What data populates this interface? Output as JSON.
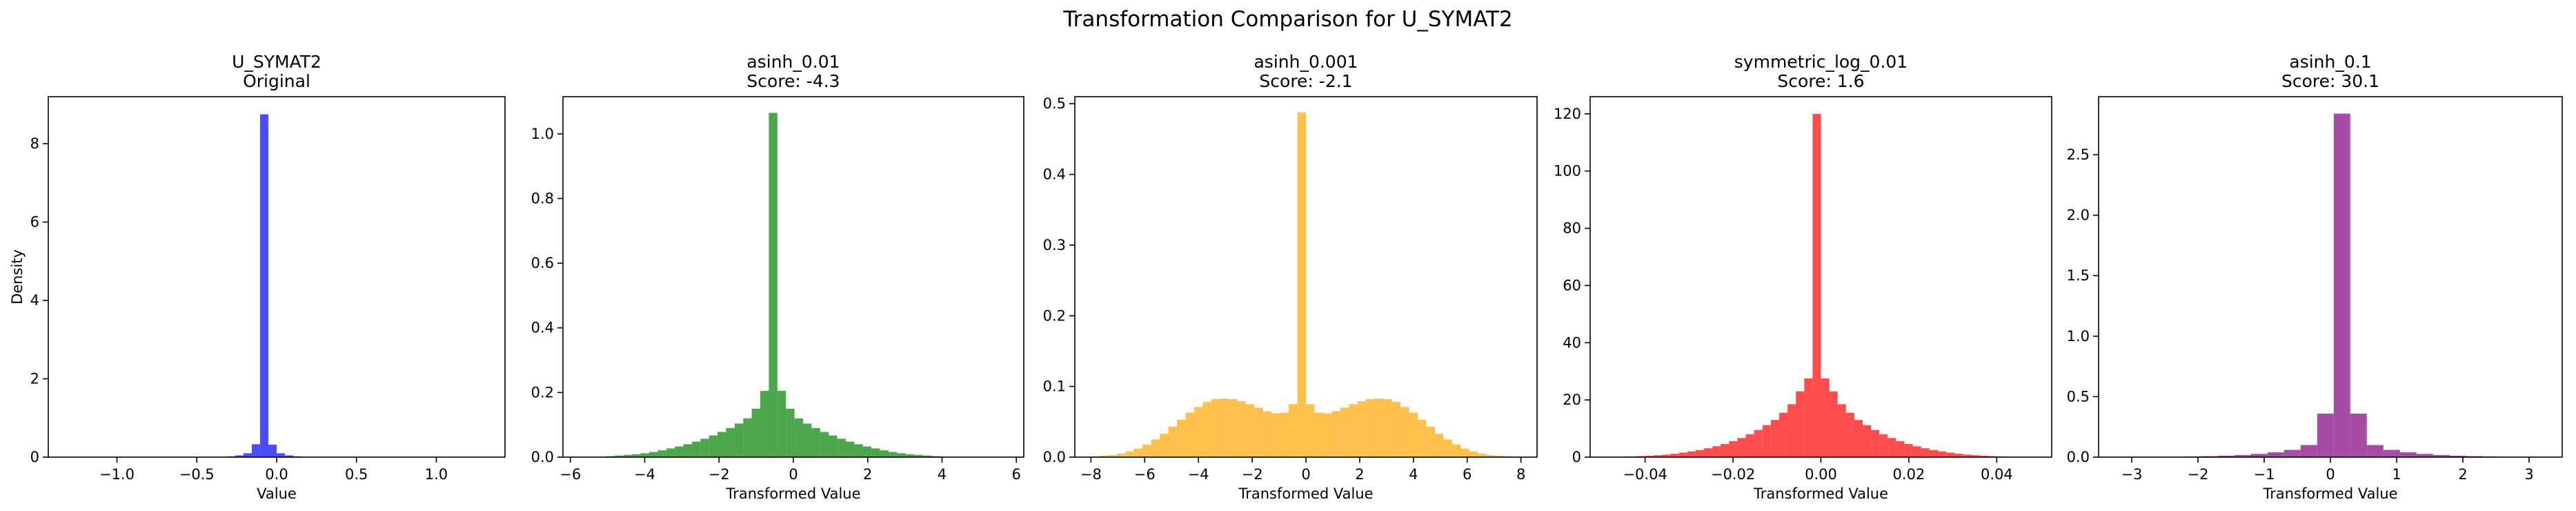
{
  "figure": {
    "suptitle": "Transformation Comparison for U_SYMAT2"
  },
  "chart_data": [
    {
      "type": "bar",
      "title_line1": "U_SYMAT2",
      "title_line2": "Original",
      "xlabel": "Value",
      "ylabel": "Density",
      "xlim": [
        -1.43,
        1.43
      ],
      "ylim": [
        0,
        9.2
      ],
      "xticks": [
        -1.0,
        -0.5,
        0.0,
        0.5,
        1.0
      ],
      "xtick_labels": [
        "−1.0",
        "−0.5",
        "0.0",
        "0.5",
        "1.0"
      ],
      "yticks": [
        0,
        2,
        4,
        6,
        8
      ],
      "ytick_labels": [
        "0",
        "2",
        "4",
        "6",
        "8"
      ],
      "color": "#0000ff",
      "bin_start": -1.3,
      "bin_width": 0.052,
      "values": [
        0,
        0,
        0,
        0,
        0,
        0,
        0,
        0,
        0,
        0,
        0,
        0,
        0,
        0,
        0.0002,
        0.0005,
        0.0012,
        0.003,
        0.008,
        0.02,
        0.045,
        0.1,
        0.33,
        8.75,
        0.32,
        0.1,
        0.044,
        0.02,
        0.008,
        0.003,
        0.0012,
        0.0005,
        0.0002,
        0,
        0,
        0,
        0,
        0,
        0,
        0,
        0,
        0,
        0,
        0,
        0,
        0,
        0,
        0,
        0,
        0
      ]
    },
    {
      "type": "bar",
      "title_line1": "asinh_0.01",
      "title_line2": "Score: -4.3",
      "xlabel": "Transformed Value",
      "ylabel": "",
      "xlim": [
        -6.2,
        6.2
      ],
      "ylim": [
        0,
        1.115
      ],
      "xticks": [
        -6,
        -4,
        -2,
        0,
        2,
        4,
        6
      ],
      "xtick_labels": [
        "−6",
        "−4",
        "−2",
        "0",
        "2",
        "4",
        "6"
      ],
      "yticks": [
        0,
        0.2,
        0.4,
        0.6,
        0.8,
        1.0
      ],
      "ytick_labels": [
        "0.0",
        "0.2",
        "0.4",
        "0.6",
        "0.8",
        "1.0"
      ],
      "color": "#008000",
      "bin_start": -5.72,
      "bin_width": 0.23,
      "values": [
        0.0004,
        0.0008,
        0.0015,
        0.003,
        0.005,
        0.007,
        0.009,
        0.012,
        0.016,
        0.021,
        0.027,
        0.033,
        0.04,
        0.048,
        0.057,
        0.067,
        0.078,
        0.09,
        0.104,
        0.12,
        0.15,
        0.205,
        1.065,
        0.205,
        0.15,
        0.12,
        0.104,
        0.09,
        0.078,
        0.067,
        0.057,
        0.048,
        0.04,
        0.033,
        0.027,
        0.021,
        0.016,
        0.012,
        0.009,
        0.007,
        0.005,
        0.003,
        0.0015,
        0.0008,
        0.0004,
        0.0001,
        0,
        0,
        0,
        0
      ]
    },
    {
      "type": "bar",
      "title_line1": "asinh_0.001",
      "title_line2": "Score: -2.1",
      "xlabel": "Transformed Value",
      "ylabel": "",
      "xlim": [
        -8.6,
        8.6
      ],
      "ylim": [
        0,
        0.51
      ],
      "xticks": [
        -8,
        -6,
        -4,
        -2,
        0,
        2,
        4,
        6,
        8
      ],
      "xtick_labels": [
        "−8",
        "−6",
        "−4",
        "−2",
        "0",
        "2",
        "4",
        "6",
        "8"
      ],
      "yticks": [
        0,
        0.1,
        0.2,
        0.3,
        0.4,
        0.5
      ],
      "ytick_labels": [
        "0.0",
        "0.1",
        "0.2",
        "0.3",
        "0.4",
        "0.5"
      ],
      "color": "#ffa500",
      "bin_start": -8.0,
      "bin_width": 0.32,
      "values": [
        0.001,
        0.002,
        0.003,
        0.005,
        0.008,
        0.012,
        0.018,
        0.025,
        0.033,
        0.043,
        0.053,
        0.063,
        0.071,
        0.078,
        0.082,
        0.083,
        0.082,
        0.079,
        0.075,
        0.07,
        0.065,
        0.062,
        0.063,
        0.075,
        0.488,
        0.075,
        0.063,
        0.062,
        0.065,
        0.07,
        0.075,
        0.079,
        0.082,
        0.083,
        0.082,
        0.078,
        0.071,
        0.063,
        0.053,
        0.043,
        0.033,
        0.025,
        0.018,
        0.012,
        0.008,
        0.005,
        0.003,
        0.002,
        0.001,
        0.0005
      ]
    },
    {
      "type": "bar",
      "title_line1": "symmetric_log_0.01",
      "title_line2": "Score: 1.6",
      "xlabel": "Transformed Value",
      "ylabel": "",
      "xlim": [
        -0.0525,
        0.0525
      ],
      "ylim": [
        0,
        126
      ],
      "xticks": [
        -0.04,
        -0.02,
        0.0,
        0.02,
        0.04
      ],
      "xtick_labels": [
        "−0.04",
        "−0.02",
        "0.00",
        "0.02",
        "0.04"
      ],
      "yticks": [
        0,
        20,
        40,
        60,
        80,
        100,
        120
      ],
      "ytick_labels": [
        "0",
        "20",
        "40",
        "60",
        "80",
        "100",
        "120"
      ],
      "color": "#ff0000",
      "bin_start": -0.0475,
      "bin_width": 0.0019,
      "values": [
        0.1,
        0.15,
        0.25,
        0.35,
        0.5,
        0.7,
        0.9,
        1.2,
        1.6,
        2.0,
        2.5,
        3.1,
        3.8,
        4.6,
        5.6,
        6.7,
        8.0,
        9.5,
        11.2,
        13.0,
        15.5,
        18.5,
        23,
        27.5,
        120,
        27.5,
        23,
        18.5,
        15.5,
        13.0,
        11.2,
        9.5,
        8.0,
        6.7,
        5.6,
        4.6,
        3.8,
        3.1,
        2.5,
        2.0,
        1.6,
        1.2,
        0.9,
        0.7,
        0.5,
        0.35,
        0.25,
        0.15,
        0.1,
        0.05
      ]
    },
    {
      "type": "bar",
      "title_line1": "asinh_0.1",
      "title_line2": "Score: 30.1",
      "xlabel": "Transformed Value",
      "ylabel": "",
      "xlim": [
        -3.5,
        3.5
      ],
      "ylim": [
        0,
        2.98
      ],
      "xticks": [
        -3,
        -2,
        -1,
        0,
        1,
        2,
        3
      ],
      "xtick_labels": [
        "−3",
        "−2",
        "−1",
        "0",
        "1",
        "2",
        "3"
      ],
      "yticks": [
        0,
        0.5,
        1.0,
        1.5,
        2.0,
        2.5
      ],
      "ytick_labels": [
        "0.0",
        "0.5",
        "1.0",
        "1.5",
        "2.0",
        "2.5"
      ],
      "color": "#800080",
      "bin_start": -3.2,
      "bin_width": 0.25,
      "values": [
        0.0005,
        0.001,
        0.002,
        0.003,
        0.005,
        0.008,
        0.012,
        0.018,
        0.027,
        0.04,
        0.06,
        0.1,
        0.36,
        2.84,
        0.36,
        0.1,
        0.06,
        0.04,
        0.027,
        0.018,
        0.012,
        0.008,
        0.005,
        0.003,
        0.002,
        0.001
      ]
    }
  ]
}
